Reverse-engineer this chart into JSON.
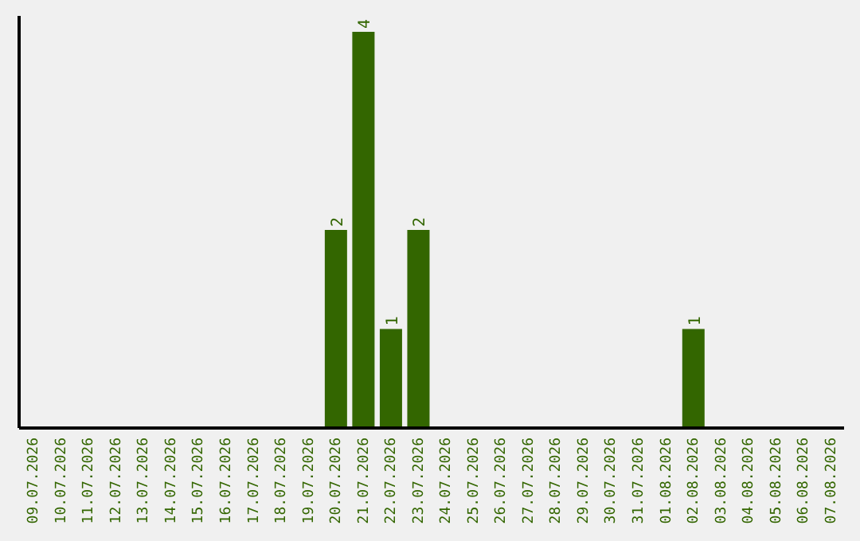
{
  "chart_data": {
    "type": "bar",
    "categories": [
      "09.07.2026",
      "10.07.2026",
      "11.07.2026",
      "12.07.2026",
      "13.07.2026",
      "14.07.2026",
      "15.07.2026",
      "16.07.2026",
      "17.07.2026",
      "18.07.2026",
      "19.07.2026",
      "20.07.2026",
      "21.07.2026",
      "22.07.2026",
      "23.07.2026",
      "24.07.2026",
      "25.07.2026",
      "26.07.2026",
      "27.07.2026",
      "28.07.2026",
      "29.07.2026",
      "30.07.2026",
      "31.07.2026",
      "01.08.2026",
      "02.08.2026",
      "03.08.2026",
      "04.08.2026",
      "05.08.2026",
      "06.08.2026",
      "07.08.2026"
    ],
    "values": [
      0,
      0,
      0,
      0,
      0,
      0,
      0,
      0,
      0,
      0,
      0,
      2,
      4,
      1,
      2,
      0,
      0,
      0,
      0,
      0,
      0,
      0,
      0,
      0,
      1,
      0,
      0,
      0,
      0,
      0
    ],
    "value_labels": [
      null,
      null,
      null,
      null,
      null,
      null,
      null,
      null,
      null,
      null,
      null,
      "2",
      "4",
      "1",
      "2",
      null,
      null,
      null,
      null,
      null,
      null,
      null,
      null,
      null,
      "1",
      null,
      null,
      null,
      null,
      null
    ],
    "color": "#336600",
    "grid": false,
    "legend": false
  }
}
